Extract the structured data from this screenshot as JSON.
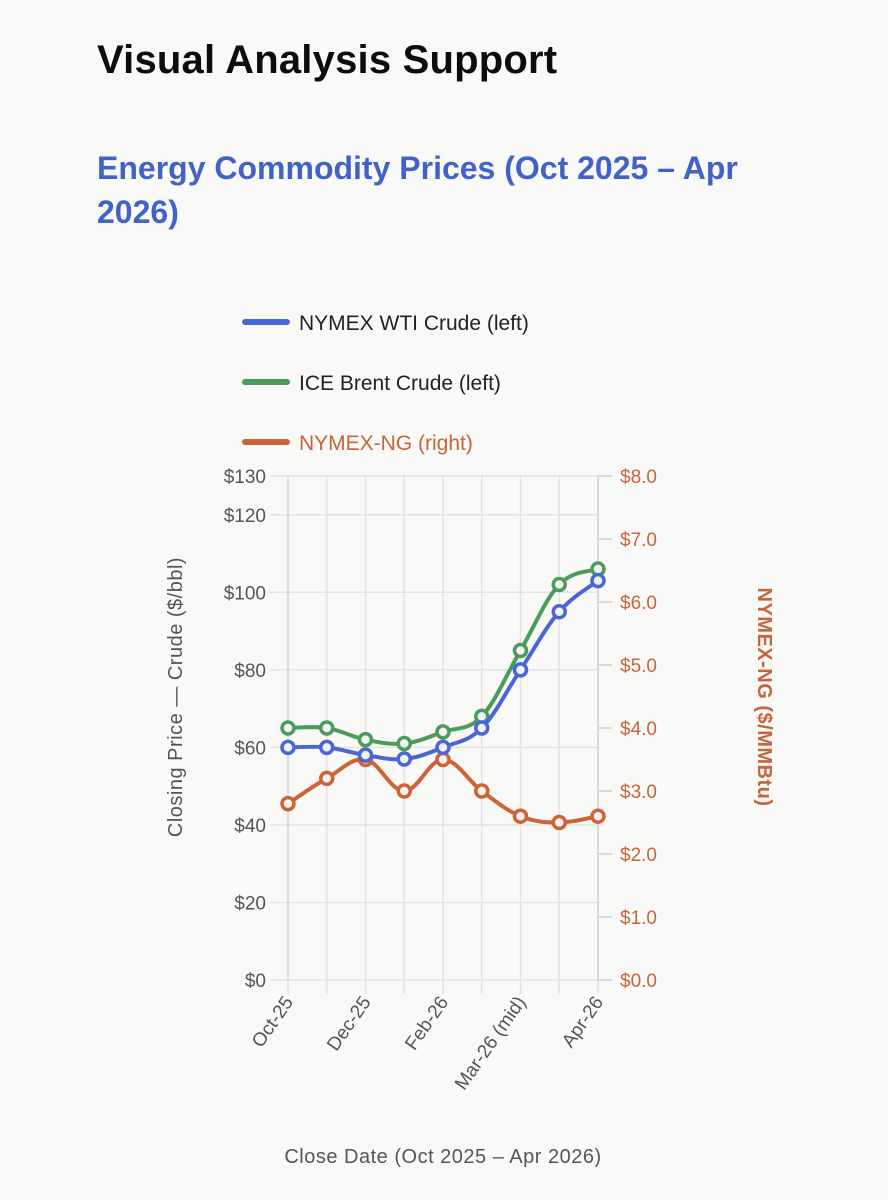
{
  "page": {
    "heading": "Visual Analysis Support"
  },
  "colors": {
    "wti": "#4a66d6",
    "brent": "#4b9c5c",
    "ng": "#cf6338",
    "grid": "#e4e4e4",
    "axis_right": "#c8643c"
  },
  "chart_data": {
    "type": "line",
    "title": "Energy Commodity Prices (Oct 2025 – Apr 2026)",
    "xlabel": "Close Date (Oct 2025 – Apr 2026)",
    "ylabel": "Closing Price — Crude ($/bbl)",
    "ylabel_right": "NYMEX-NG ($/MMBtu)",
    "ylim": [
      0,
      130
    ],
    "ylim_right": [
      0,
      8
    ],
    "y_ticks": [
      0,
      20,
      40,
      60,
      80,
      100,
      120,
      130
    ],
    "y_tick_labels": [
      "$0",
      "$20",
      "$40",
      "$60",
      "$80",
      "$100",
      "$120",
      "$130"
    ],
    "y_ticks_right": [
      0,
      1,
      2,
      3,
      4,
      5,
      6,
      7,
      8
    ],
    "y_tick_labels_right": [
      "$0.0",
      "$1.0",
      "$2.0",
      "$3.0",
      "$4.0",
      "$5.0",
      "$6.0",
      "$7.0",
      "$8.0"
    ],
    "x": [
      0,
      1,
      2,
      3,
      4,
      5,
      6,
      7,
      8
    ],
    "x_tick_positions": [
      0,
      2,
      4,
      6,
      8
    ],
    "x_tick_labels": [
      "Oct-25",
      "Dec-25",
      "Feb-26",
      "Mar-26 (mid)",
      "Apr-26"
    ],
    "legend_position": "top",
    "series": [
      {
        "name": "NYMEX WTI Crude (left)",
        "axis": "left",
        "color": "#4a66d6",
        "values": [
          60,
          60,
          58,
          57,
          60,
          65,
          80,
          95,
          103
        ]
      },
      {
        "name": "ICE Brent Crude (left)",
        "axis": "left",
        "color": "#4b9c5c",
        "values": [
          65,
          65,
          62,
          61,
          64,
          68,
          85,
          102,
          106
        ]
      },
      {
        "name": "NYMEX-NG (right)",
        "axis": "right",
        "color": "#cf6338",
        "values": [
          2.8,
          3.2,
          3.5,
          3.0,
          3.5,
          3.0,
          2.6,
          2.5,
          2.6
        ]
      }
    ]
  }
}
